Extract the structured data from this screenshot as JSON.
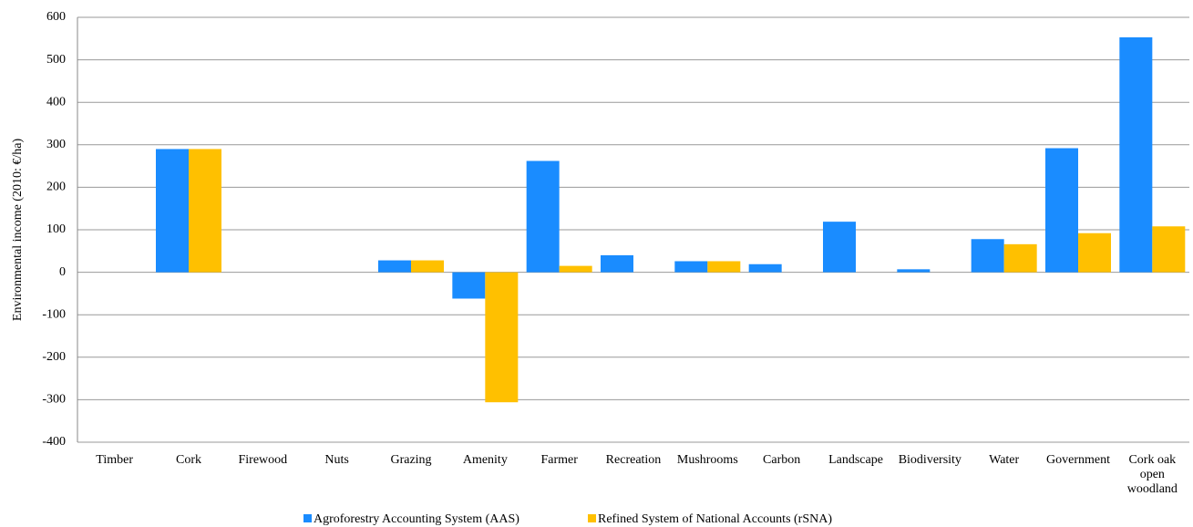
{
  "chart_data": {
    "type": "bar",
    "y_label": "Environmental income (2010: €/ha)",
    "categories": [
      "Timber",
      "Cork",
      "Firewood",
      "Nuts",
      "Grazing",
      "Amenity",
      "Farmer",
      "Recreation",
      "Mushrooms",
      "Carbon",
      "Landscape",
      "Biodiversity",
      "Water",
      "Government",
      "Cork oak open woodland"
    ],
    "series": [
      {
        "name": "Agroforestry Accounting System (AAS)",
        "color": "#1a8cff",
        "values": [
          0,
          290,
          0,
          0,
          28,
          -62,
          262,
          40,
          26,
          19,
          119,
          7,
          78,
          292,
          553
        ]
      },
      {
        "name": "Refined System of National Accounts (rSNA)",
        "color": "#ffc000",
        "values": [
          0,
          290,
          0,
          0,
          28,
          -306,
          15,
          0,
          26,
          0,
          0,
          0,
          66,
          92,
          108
        ]
      }
    ],
    "ylim": [
      -400,
      600
    ],
    "yticks": [
      -400,
      -300,
      -200,
      -100,
      0,
      100,
      200,
      300,
      400,
      500,
      600
    ],
    "grid": true,
    "legend": "bottom"
  }
}
